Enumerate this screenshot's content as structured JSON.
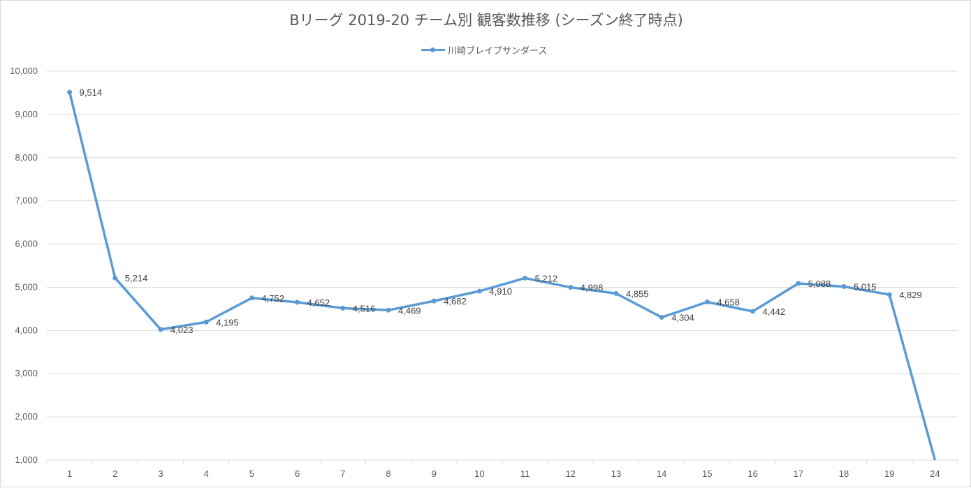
{
  "chart_data": {
    "type": "line",
    "title": "Bリーグ 2019-20 チーム別 観客数推移 (シーズン終了時点)",
    "xlabel": "",
    "ylabel": "",
    "categories": [
      "1",
      "2",
      "3",
      "4",
      "5",
      "6",
      "7",
      "8",
      "9",
      "10",
      "11",
      "12",
      "13",
      "14",
      "15",
      "16",
      "17",
      "18",
      "19",
      "24"
    ],
    "series": [
      {
        "name": "川崎ブレイブサンダース",
        "color": "#5b9bd5",
        "values": [
          9514,
          5214,
          4023,
          4195,
          4752,
          4652,
          4516,
          4469,
          4682,
          4910,
          5212,
          4998,
          4855,
          4304,
          4658,
          4442,
          5088,
          5015,
          4829,
          1000
        ],
        "data_labels": [
          "9,514",
          "5,214",
          "4,023",
          "4,195",
          "4,752",
          "4,652",
          "4,516",
          "4,469",
          "4,682",
          "4,910",
          "5,212",
          "4,998",
          "4,855",
          "4,304",
          "4,658",
          "4,442",
          "5,088",
          "5,015",
          "4,829",
          ""
        ]
      }
    ],
    "ylim": [
      1000,
      10000
    ],
    "yticks": [
      1000,
      2000,
      3000,
      4000,
      5000,
      6000,
      7000,
      8000,
      9000,
      10000
    ],
    "ytick_labels": [
      "1,000",
      "2,000",
      "3,000",
      "4,000",
      "5,000",
      "6,000",
      "7,000",
      "8,000",
      "9,000",
      "10,000"
    ],
    "grid": true,
    "legend_position": "top-center"
  }
}
